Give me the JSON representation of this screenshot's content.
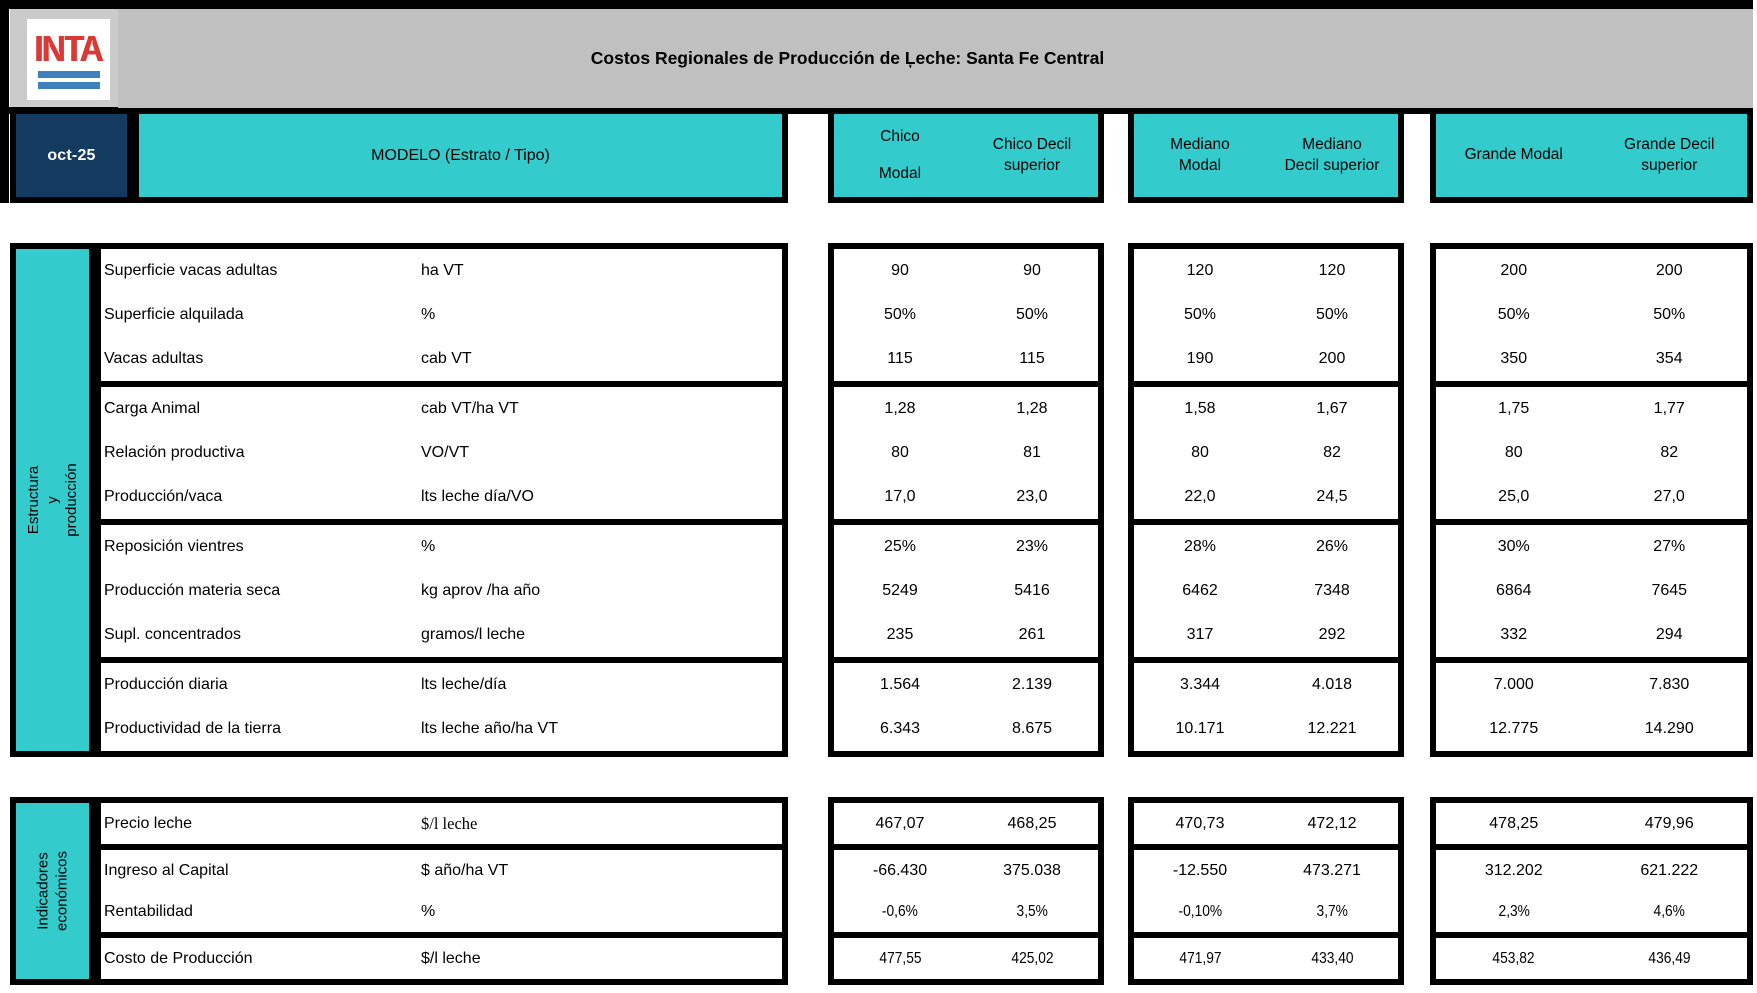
{
  "header": {
    "logo_text": "INTA",
    "title": "Costos Regionales de Producción de Ļeche: Santa Fe Central",
    "date": "oct-25",
    "model_label": "MODELO (Estrato / Tipo)",
    "column_groups": [
      {
        "name": "chico",
        "columns": [
          [
            "Chico",
            "Modal"
          ],
          [
            "Chico Decil",
            "superior"
          ]
        ]
      },
      {
        "name": "mediano",
        "columns": [
          [
            "Mediano",
            "Modal"
          ],
          [
            "Mediano",
            "Decil superior"
          ]
        ]
      },
      {
        "name": "grande",
        "columns": [
          [
            "Grande Modal"
          ],
          [
            "Grande Decil",
            "superior"
          ]
        ]
      }
    ]
  },
  "sections": [
    {
      "sidebar_label": "Estructura y producción",
      "rows": [
        {
          "label": "Superficie vacas adultas",
          "unit": "ha VT",
          "values": [
            "90",
            "90",
            "120",
            "120",
            "200",
            "200"
          ]
        },
        {
          "label": "Superficie alquilada",
          "unit": "%",
          "values": [
            "50%",
            "50%",
            "50%",
            "50%",
            "50%",
            "50%"
          ]
        },
        {
          "label": "Vacas adultas",
          "unit": "cab VT",
          "values": [
            "115",
            "115",
            "190",
            "200",
            "350",
            "354"
          ]
        },
        {
          "label": "Carga Animal",
          "unit": "cab VT/ha VT",
          "values": [
            "1,28",
            "1,28",
            "1,58",
            "1,67",
            "1,75",
            "1,77"
          ],
          "group_start": true
        },
        {
          "label": "Relación productiva",
          "unit": "VO/VT",
          "values": [
            "80",
            "81",
            "80",
            "82",
            "80",
            "82"
          ]
        },
        {
          "label": "Producción/vaca",
          "unit": "lts leche día/VO",
          "values": [
            "17,0",
            "23,0",
            "22,0",
            "24,5",
            "25,0",
            "27,0"
          ]
        },
        {
          "label": "Reposición vientres",
          "unit": "%",
          "values": [
            "25%",
            "23%",
            "28%",
            "26%",
            "30%",
            "27%"
          ],
          "group_start": true
        },
        {
          "label": "Producción materia seca",
          "unit": "kg aprov /ha año",
          "values": [
            "5249",
            "5416",
            "6462",
            "7348",
            "6864",
            "7645"
          ]
        },
        {
          "label": "Supl. concentrados",
          "unit": "gramos/l leche",
          "values": [
            "235",
            "261",
            "317",
            "292",
            "332",
            "294"
          ]
        },
        {
          "label": "Producción diaria",
          "unit": "lts leche/día",
          "values": [
            "1.564",
            "2.139",
            "3.344",
            "4.018",
            "7.000",
            "7.830"
          ],
          "group_start": true
        },
        {
          "label": "Productividad de la tierra",
          "unit": "lts leche año/ha VT",
          "values": [
            "6.343",
            "8.675",
            "10.171",
            "12.221",
            "12.775",
            "14.290"
          ]
        }
      ]
    },
    {
      "sidebar_label": "Indicadores\neconómicos",
      "rows": [
        {
          "label": "Precio leche",
          "unit": "$/l leche",
          "values": [
            "467,07",
            "468,25",
            "470,73",
            "472,12",
            "478,25",
            "479,96"
          ],
          "unit_serif": true
        },
        {
          "label": "Ingreso al Capital",
          "unit": "$ año/ha VT",
          "values": [
            "-66.430",
            "375.038",
            "-12.550",
            "473.271",
            "312.202",
            "621.222"
          ],
          "group_start": true
        },
        {
          "label": "Rentabilidad",
          "unit": "%",
          "values": [
            "-0,6%",
            "3,5%",
            "-0,10%",
            "3,7%",
            "2,3%",
            "4,6%"
          ],
          "narrow": true
        },
        {
          "label": "Costo de Producción",
          "unit": "$/l leche",
          "values": [
            "477,55",
            "425,02",
            "471,97",
            "433,40",
            "453,82",
            "436,49"
          ],
          "group_start": true,
          "narrow": true
        }
      ]
    }
  ],
  "colors": {
    "teal": "#33cbcb",
    "navy": "#133a5f",
    "header_gray": "#c0c0c0",
    "logo_red": "#d93a35",
    "logo_blue": "#4080bf",
    "border_black": "#000000"
  }
}
